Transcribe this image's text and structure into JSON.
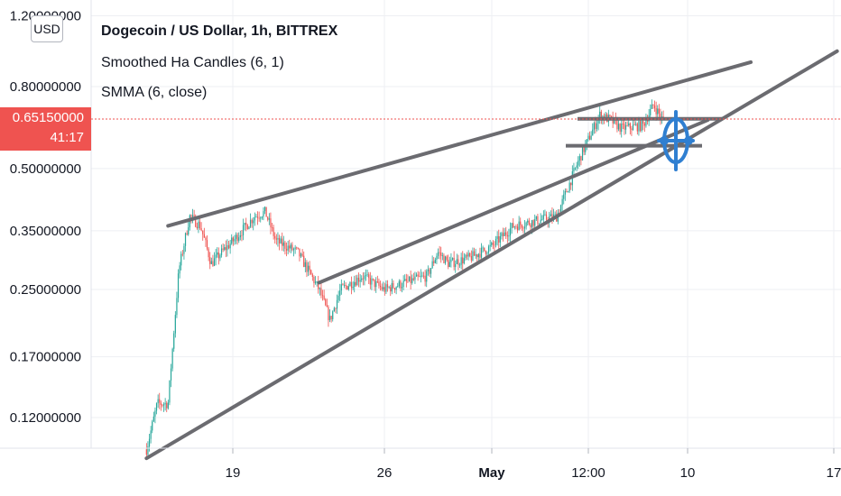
{
  "header": {
    "title": "Dogecoin / US Dollar, 1h, BITTREX",
    "indicator_1": "Smoothed Ha Candles (6, 1)",
    "indicator_2": "SMMA (6, close)"
  },
  "currency_button": "USD",
  "last_price": {
    "price": "0.65150000",
    "countdown": "41:17"
  },
  "colors": {
    "up": "#26a69a",
    "down": "#ef5350",
    "trendline": "#6b6b70",
    "crosshair_marker": "#2f7fd1",
    "grid": "#eeeff3"
  },
  "chart_data": {
    "type": "candlestick",
    "title": "Dogecoin / US Dollar, 1h, BITTREX",
    "y_scale": "log",
    "y_ticks": [
      "1.20000000",
      "0.80000000",
      "0.50000000",
      "0.35000000",
      "0.25000000",
      "0.17000000",
      "0.12000000"
    ],
    "x_ticks": [
      "19",
      "26",
      "May",
      "12:00",
      "10",
      "17"
    ],
    "last_price": 0.6515,
    "series_outline": [
      {
        "x": "Apr 15",
        "y": 0.1
      },
      {
        "x": "Apr 15 12:00",
        "y": 0.13
      },
      {
        "x": "Apr 16",
        "y": 0.13
      },
      {
        "x": "Apr 16 12:00",
        "y": 0.28
      },
      {
        "x": "Apr 17",
        "y": 0.38
      },
      {
        "x": "Apr 17 12:00",
        "y": 0.36
      },
      {
        "x": "Apr 18",
        "y": 0.29
      },
      {
        "x": "Apr 18 12:00",
        "y": 0.31
      },
      {
        "x": "Apr 19",
        "y": 0.33
      },
      {
        "x": "Apr 20",
        "y": 0.38
      },
      {
        "x": "Apr 20 12:00",
        "y": 0.39
      },
      {
        "x": "Apr 21",
        "y": 0.33
      },
      {
        "x": "Apr 22",
        "y": 0.31
      },
      {
        "x": "Apr 23",
        "y": 0.25
      },
      {
        "x": "Apr 23 12:00",
        "y": 0.21
      },
      {
        "x": "Apr 24",
        "y": 0.25
      },
      {
        "x": "Apr 25",
        "y": 0.27
      },
      {
        "x": "Apr 26",
        "y": 0.25
      },
      {
        "x": "Apr 27",
        "y": 0.26
      },
      {
        "x": "Apr 28",
        "y": 0.27
      },
      {
        "x": "Apr 28 12:00",
        "y": 0.31
      },
      {
        "x": "Apr 29",
        "y": 0.29
      },
      {
        "x": "Apr 30",
        "y": 0.3
      },
      {
        "x": "May 1",
        "y": 0.32
      },
      {
        "x": "May 2",
        "y": 0.36
      },
      {
        "x": "May 3",
        "y": 0.37
      },
      {
        "x": "May 4",
        "y": 0.38
      },
      {
        "x": "May 5",
        "y": 0.52
      },
      {
        "x": "May 6",
        "y": 0.68
      },
      {
        "x": "May 6 12:00",
        "y": 0.66
      },
      {
        "x": "May 7",
        "y": 0.63
      },
      {
        "x": "May 8",
        "y": 0.64
      },
      {
        "x": "May 8 12:00",
        "y": 0.72
      },
      {
        "x": "May 9",
        "y": 0.65
      }
    ],
    "drawings": [
      {
        "kind": "trendline",
        "from": {
          "x": "Apr 16",
          "y": 0.36
        },
        "to": {
          "x": "May 13",
          "y": 0.92
        }
      },
      {
        "kind": "trendline",
        "from": {
          "x": "Apr 15",
          "y": 0.095
        },
        "to": {
          "x": "May 17",
          "y": 0.98
        }
      },
      {
        "kind": "trendline",
        "from": {
          "x": "Apr 23",
          "y": 0.26
        },
        "to": {
          "x": "May 11",
          "y": 0.66
        }
      },
      {
        "kind": "horizontal_segment",
        "y": 0.665
      },
      {
        "kind": "horizontal_segment",
        "y": 0.57
      }
    ]
  }
}
